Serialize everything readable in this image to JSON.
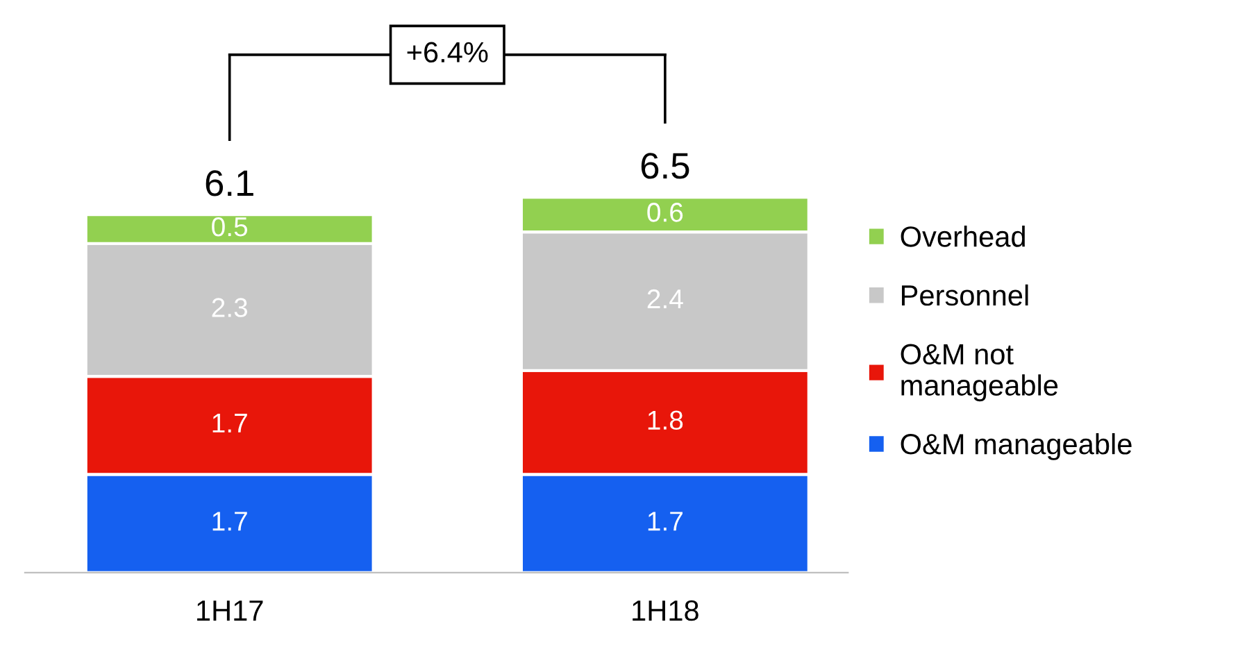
{
  "chart_data": {
    "type": "bar",
    "stacked": true,
    "categories": [
      "1H17",
      "1H18"
    ],
    "series": [
      {
        "name": "O&M manageable",
        "color": "#1560f0",
        "values": [
          1.7,
          1.7
        ]
      },
      {
        "name": "O&M not\nmanageable",
        "color": "#e8160a",
        "values": [
          1.7,
          1.8
        ]
      },
      {
        "name": "Personnel",
        "color": "#c8c8c8",
        "values": [
          2.3,
          2.4
        ]
      },
      {
        "name": "Overhead",
        "color": "#92d050",
        "values": [
          0.5,
          0.6
        ]
      }
    ],
    "data_labels": true,
    "totals": [
      "6.1",
      "6.5"
    ],
    "annotations": [
      "+6.4%"
    ],
    "legend": "right",
    "grid": false,
    "tick_labels": "x"
  }
}
